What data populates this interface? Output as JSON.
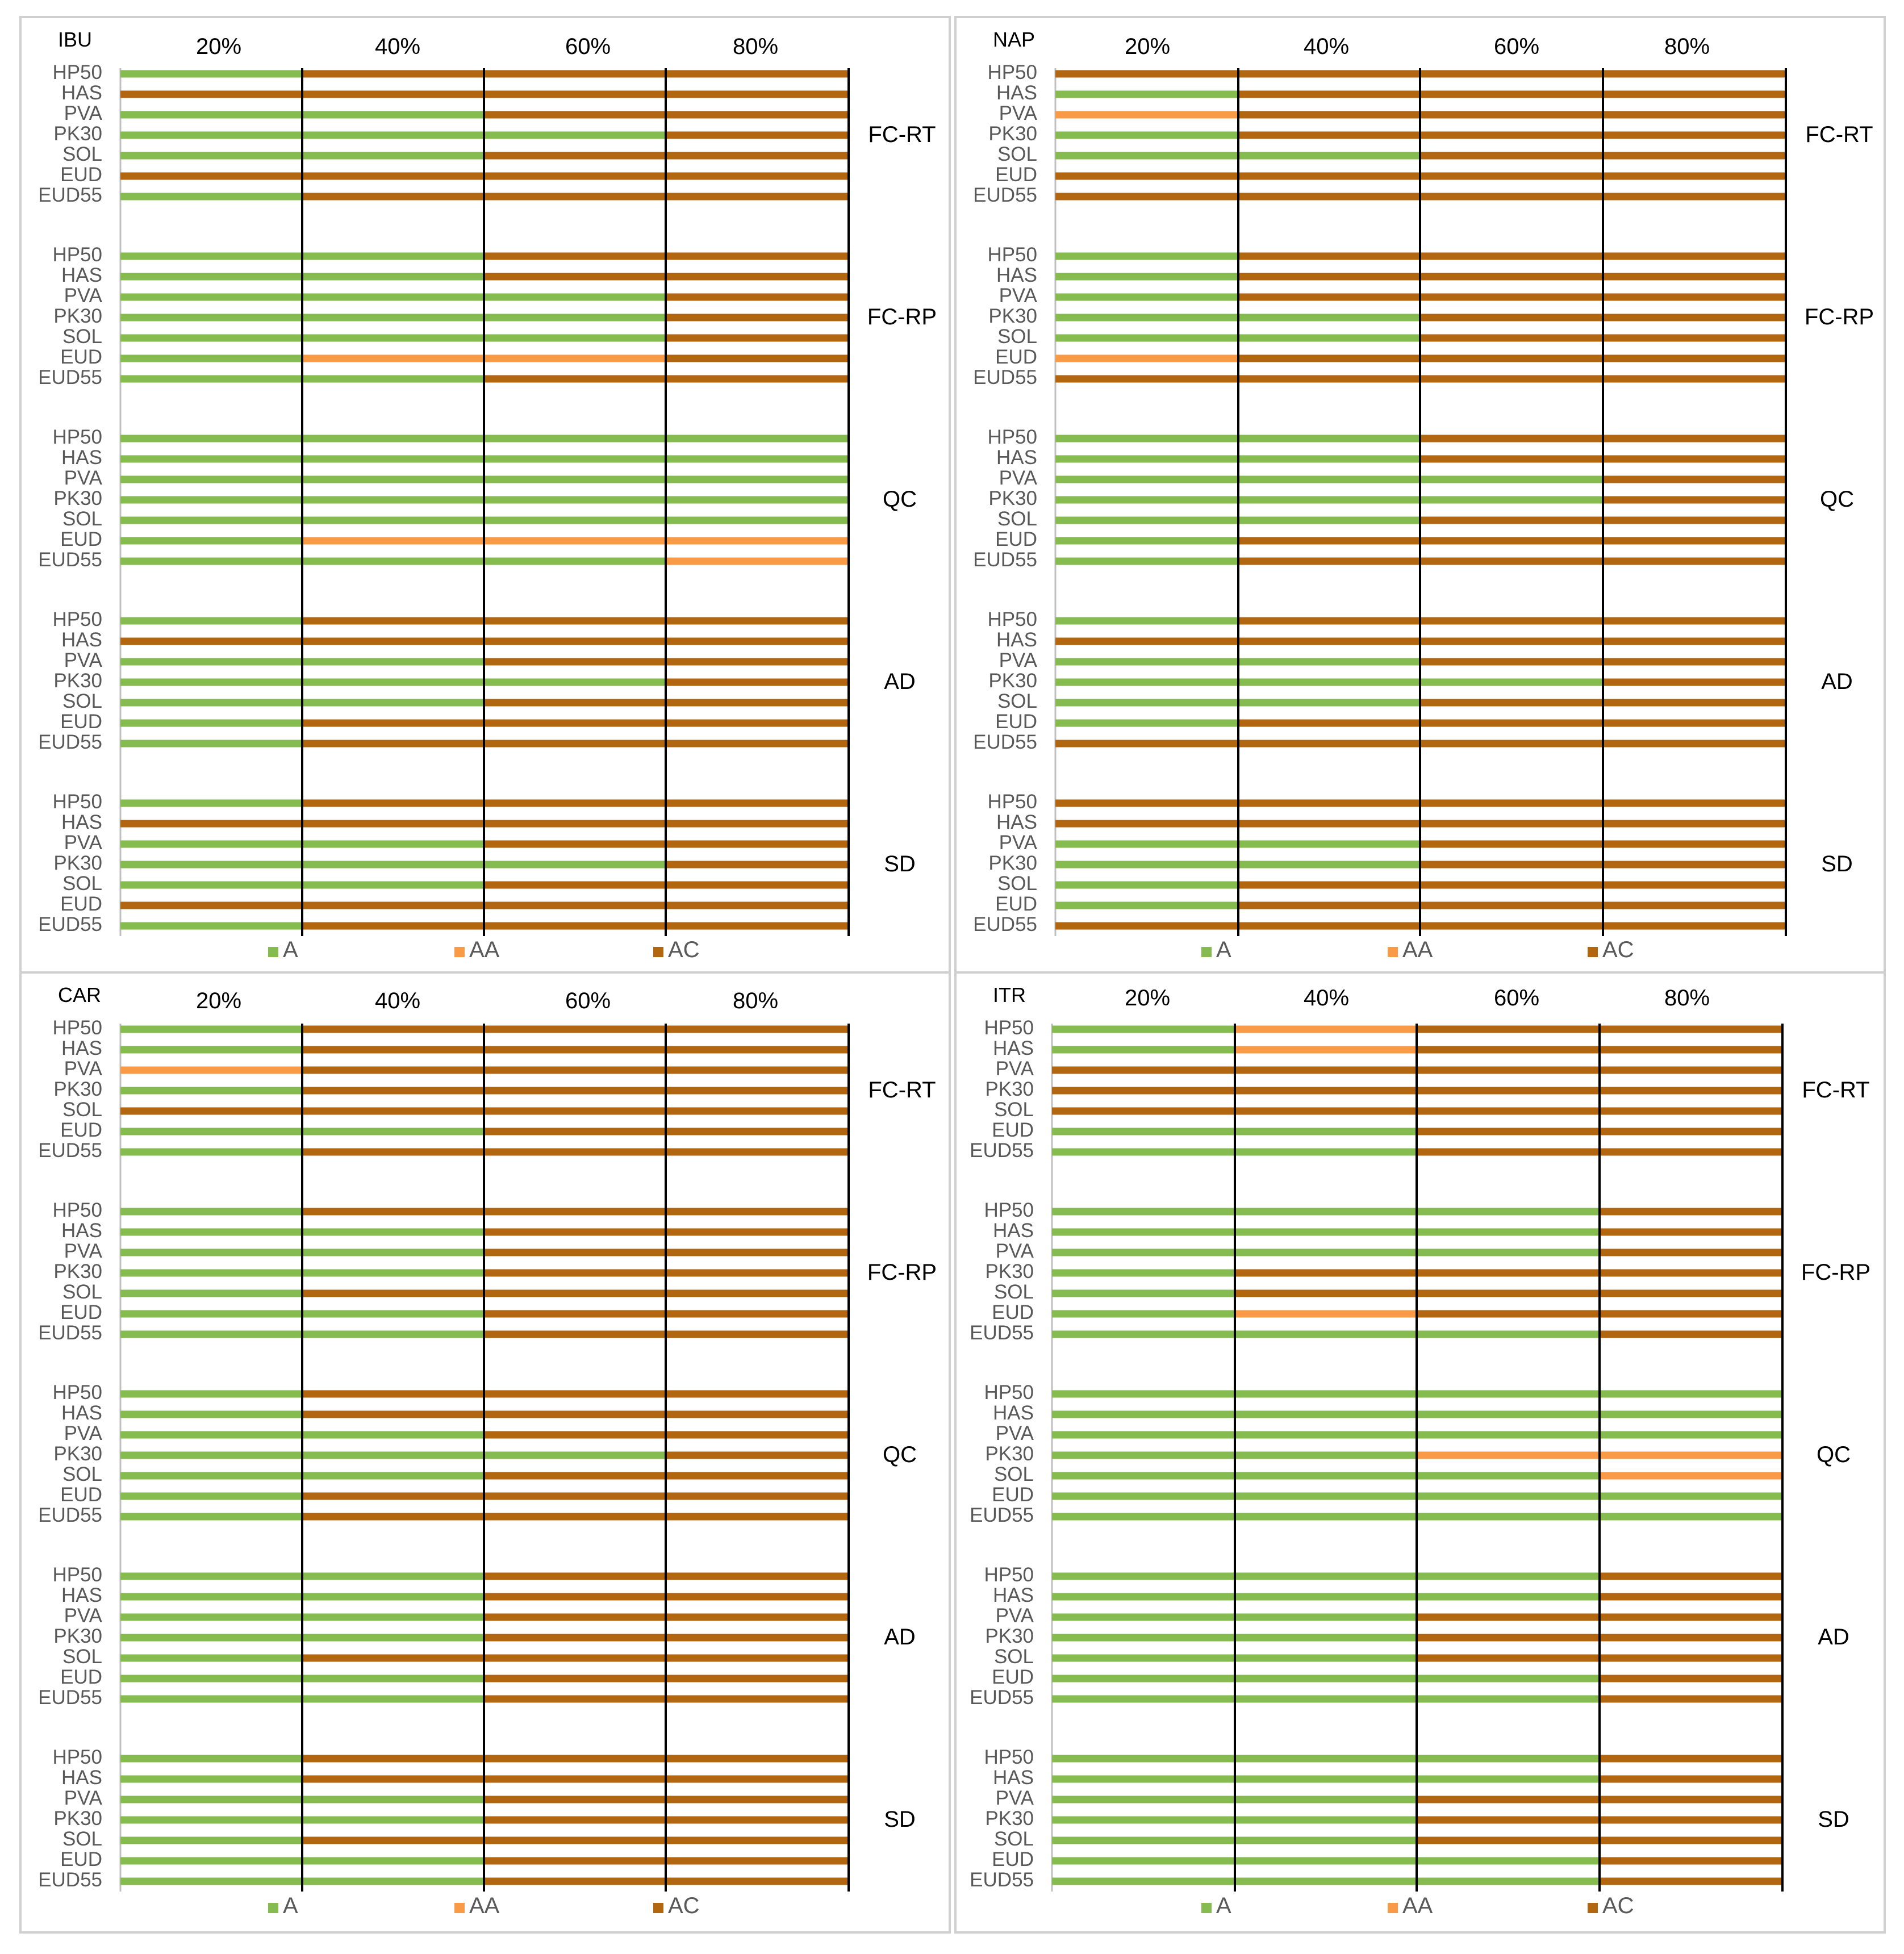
{
  "colors": {
    "A": "#86bb50",
    "AA": "#f99b46",
    "AC": "#b26610",
    "grid": "#000000",
    "axis": "#bfbfbf",
    "border": "#d0d0d0",
    "text": "#595959"
  },
  "chart_data": {
    "type": "bar",
    "orientation": "horizontal-stacked",
    "tick_labels": [
      "20%",
      "40%",
      "60%",
      "80%"
    ],
    "categories": [
      "HP50",
      "HAS",
      "PVA",
      "PK30",
      "SOL",
      "EUD",
      "EUD55"
    ],
    "groups": [
      "FC-RT",
      "FC-RP",
      "QC",
      "AD",
      "SD"
    ],
    "legend": [
      "A",
      "AA",
      "AC"
    ],
    "panels": [
      {
        "title": "IBU",
        "rows": {
          "FC-RT": [
            [
              "A",
              1
            ],
            [
              "AC",
              3
            ]
          ],
          "x": 0
        }
      }
    ]
  }
}
